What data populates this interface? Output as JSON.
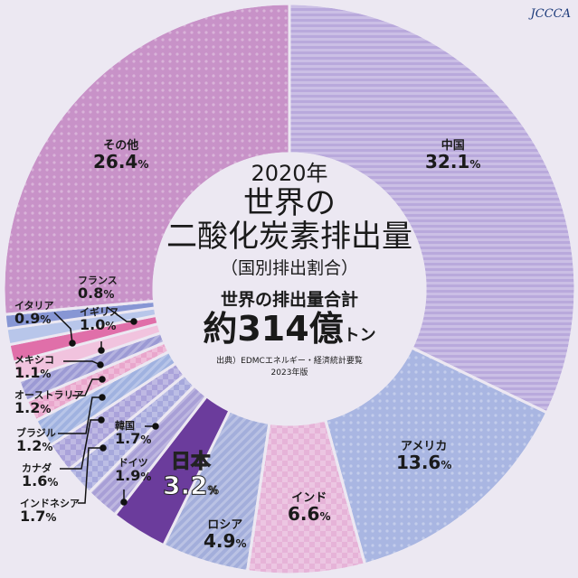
{
  "logo": "JCCCA",
  "title": {
    "year": "2020年",
    "line1": "世界の",
    "line2": "二酸化炭素排出量",
    "line3": "（国別排出割合）"
  },
  "total": {
    "label": "世界の排出量合計",
    "value": "約314億",
    "unit": "トン"
  },
  "source": {
    "line1": "出典）EDMCエネルギー・経済統計要覧",
    "line2": "2023年版"
  },
  "chart_data": {
    "type": "pie",
    "title": "2020年 世界の二酸化炭素排出量（国別排出割合）",
    "unit": "%",
    "categories": [
      "中国",
      "アメリカ",
      "インド",
      "ロシア",
      "日本",
      "ドイツ",
      "韓国",
      "インドネシア",
      "カナダ",
      "ブラジル",
      "オーストラリア",
      "メキシコ",
      "イギリス",
      "イタリア",
      "フランス",
      "その他"
    ],
    "values": [
      32.1,
      13.6,
      6.6,
      4.9,
      3.2,
      1.9,
      1.7,
      1.7,
      1.6,
      1.2,
      1.2,
      1.1,
      1.0,
      0.9,
      0.8,
      26.4
    ],
    "labels": [
      "32.1",
      "13.6",
      "6.6",
      "4.9",
      "3.2",
      "1.9",
      "1.7",
      "1.7",
      "1.6",
      "1.2",
      "1.2",
      "1.1",
      "1.0",
      "0.9",
      "0.8",
      "26.4"
    ],
    "colors": [
      "#b9a9dc",
      "#a9b6e2",
      "#e6b3d8",
      "#a3aedb",
      "#6b3c9c",
      "#a89fd6",
      "#a6a8dc",
      "#aaa2da",
      "#a0b2e0",
      "#e9a6cc",
      "#9c9ad4",
      "#f1c3de",
      "#e06fa9",
      "#b8c6ea",
      "#8796d4",
      "#c892c8"
    ],
    "pct": "%"
  }
}
